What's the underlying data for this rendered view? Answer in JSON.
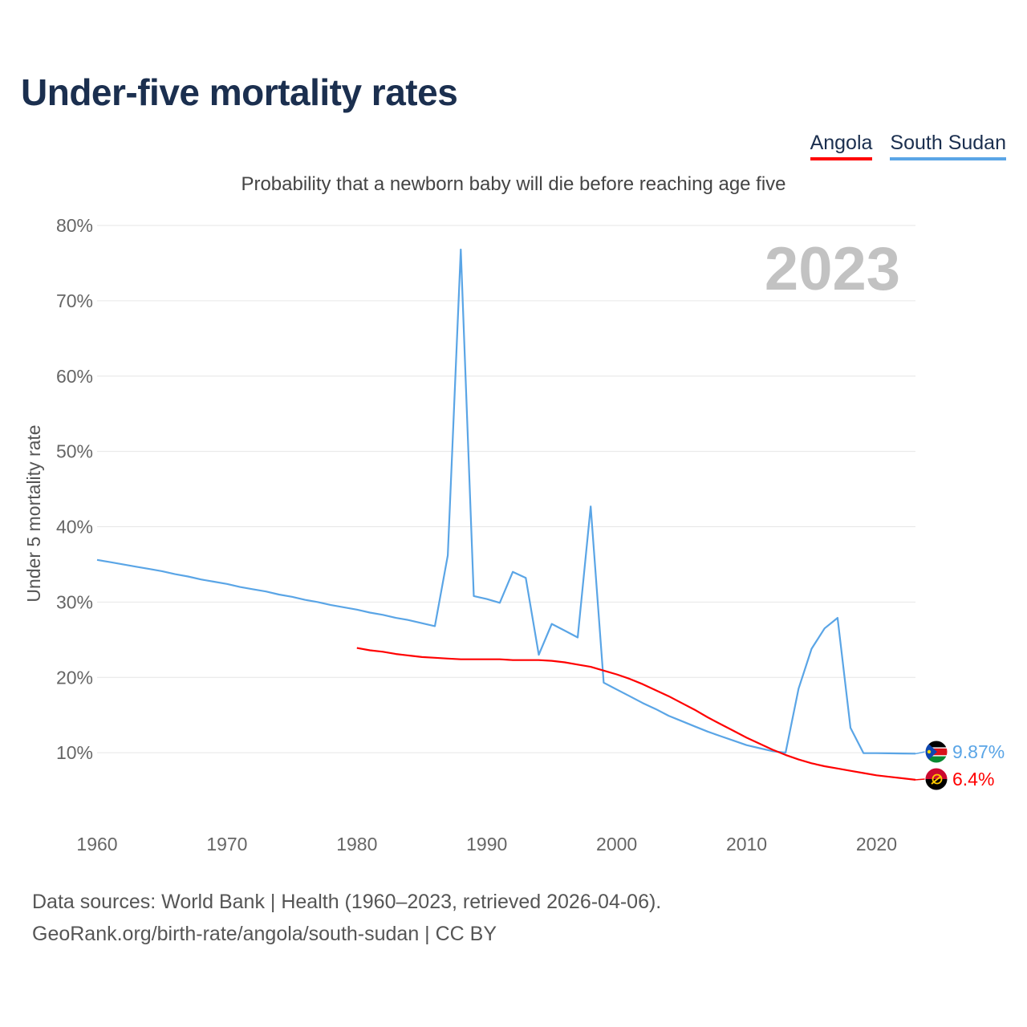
{
  "title": "Under-five mortality rates",
  "subtitle": "Probability that a newborn baby will die before reaching age five",
  "legend": [
    {
      "name": "Angola",
      "color": "#ff0000"
    },
    {
      "name": "South Sudan",
      "color": "#5aa5e6"
    }
  ],
  "year_badge": "2023",
  "source": {
    "line1": "Data sources: World Bank | Health (1960–2023, retrieved 2026-04-06).",
    "line2": "GeoRank.org/birth-rate/angola/south-sudan | CC BY"
  },
  "chart_data": {
    "type": "line",
    "title": "Under-five mortality rates",
    "ylabel": "Under 5 mortality rate",
    "xlabel": "",
    "xlim": [
      1960,
      2023
    ],
    "ylim": [
      0,
      80
    ],
    "x_ticks": [
      "1960",
      "1970",
      "1980",
      "1990",
      "2000",
      "2010",
      "2020"
    ],
    "y_ticks": [
      "10%",
      "20%",
      "30%",
      "40%",
      "50%",
      "60%",
      "70%",
      "80%"
    ],
    "grid": true,
    "series": [
      {
        "name": "South Sudan",
        "color": "#5aa5e6",
        "end_label": "9.87%",
        "x": [
          1960,
          1961,
          1962,
          1963,
          1964,
          1965,
          1966,
          1967,
          1968,
          1969,
          1970,
          1971,
          1972,
          1973,
          1974,
          1975,
          1976,
          1977,
          1978,
          1979,
          1980,
          1981,
          1982,
          1983,
          1984,
          1985,
          1986,
          1987,
          1988,
          1989,
          1990,
          1991,
          1992,
          1993,
          1994,
          1995,
          1996,
          1997,
          1998,
          1999,
          2000,
          2001,
          2002,
          2003,
          2004,
          2005,
          2006,
          2007,
          2008,
          2009,
          2010,
          2011,
          2012,
          2013,
          2014,
          2015,
          2016,
          2017,
          2018,
          2019,
          2020,
          2021,
          2022,
          2023
        ],
        "values": [
          35.6,
          35.3,
          35.0,
          34.7,
          34.4,
          34.1,
          33.7,
          33.4,
          33.0,
          32.7,
          32.4,
          32.0,
          31.7,
          31.4,
          31.0,
          30.7,
          30.3,
          30.0,
          29.6,
          29.3,
          29.0,
          28.6,
          28.3,
          27.9,
          27.6,
          27.2,
          26.8,
          36.2,
          76.8,
          30.8,
          30.4,
          29.9,
          34.0,
          33.2,
          23.0,
          27.1,
          26.2,
          25.3,
          42.7,
          19.3,
          18.4,
          17.5,
          16.6,
          15.8,
          14.9,
          14.2,
          13.5,
          12.8,
          12.2,
          11.6,
          11.0,
          10.6,
          10.2,
          10.0,
          18.5,
          23.8,
          26.5,
          27.9,
          13.3,
          9.95,
          9.94,
          9.92,
          9.9,
          9.87
        ]
      },
      {
        "name": "Angola",
        "color": "#ff0000",
        "end_label": "6.4%",
        "x": [
          1980,
          1981,
          1982,
          1983,
          1984,
          1985,
          1986,
          1987,
          1988,
          1989,
          1990,
          1991,
          1992,
          1993,
          1994,
          1995,
          1996,
          1997,
          1998,
          1999,
          2000,
          2001,
          2002,
          2003,
          2004,
          2005,
          2006,
          2007,
          2008,
          2009,
          2010,
          2011,
          2012,
          2013,
          2014,
          2015,
          2016,
          2017,
          2018,
          2019,
          2020,
          2021,
          2022,
          2023
        ],
        "values": [
          23.9,
          23.6,
          23.4,
          23.1,
          22.9,
          22.7,
          22.6,
          22.5,
          22.4,
          22.4,
          22.4,
          22.4,
          22.3,
          22.3,
          22.3,
          22.2,
          22.0,
          21.7,
          21.4,
          20.9,
          20.4,
          19.8,
          19.1,
          18.3,
          17.5,
          16.6,
          15.7,
          14.7,
          13.8,
          12.9,
          12.0,
          11.2,
          10.4,
          9.7,
          9.1,
          8.6,
          8.2,
          7.9,
          7.6,
          7.3,
          7.0,
          6.8,
          6.6,
          6.4
        ]
      }
    ]
  }
}
